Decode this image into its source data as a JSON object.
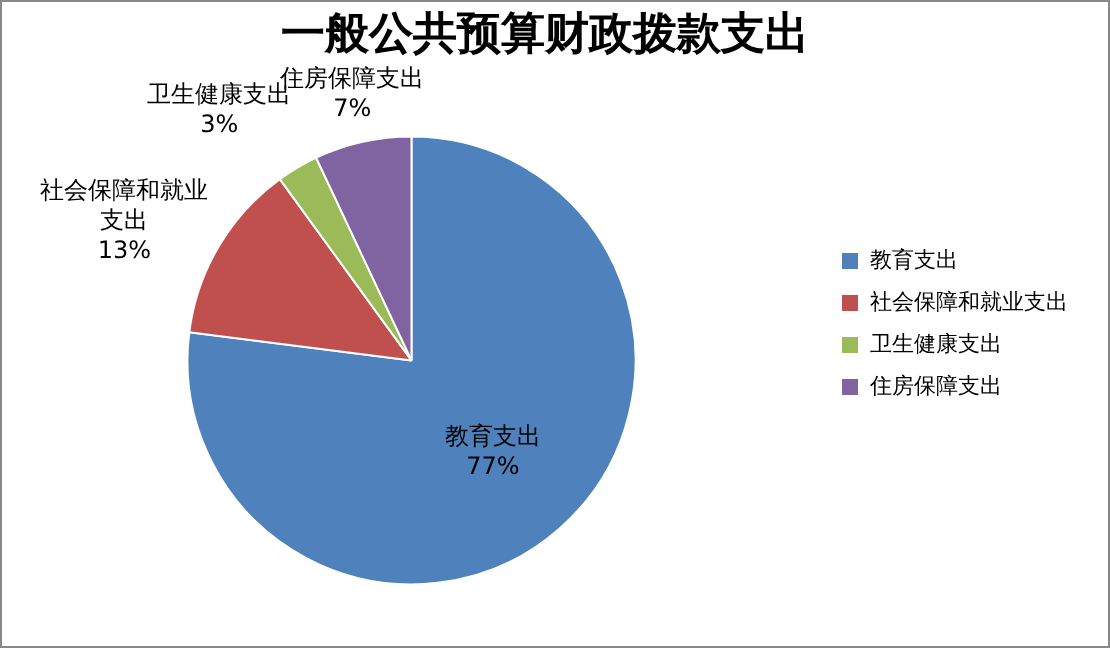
{
  "chart_data": {
    "type": "pie",
    "title": "一般公共预算财政拨款支出",
    "categories": [
      "教育支出",
      "社会保障和就业支出",
      "卫生健康支出",
      "住房保障支出"
    ],
    "values": [
      77,
      13,
      3,
      7
    ],
    "value_labels": [
      "77%",
      "13%",
      "3%",
      "7%"
    ],
    "colors": [
      "#4f81bd",
      "#c0504d",
      "#9bbb59",
      "#8064a2"
    ],
    "legend": "right"
  }
}
